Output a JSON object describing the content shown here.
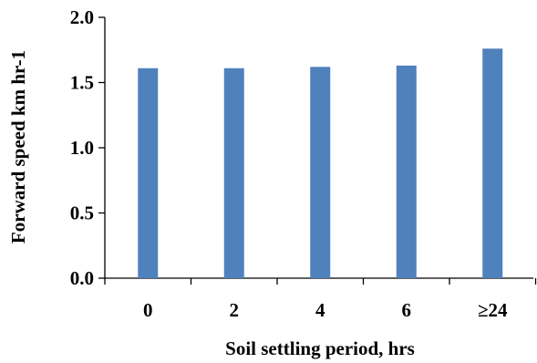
{
  "chart_data": {
    "type": "bar",
    "title": "",
    "xlabel": "Soil settling period, hrs",
    "ylabel": "Forward speed km hr-1",
    "categories": [
      "0",
      "2",
      "4",
      "6",
      "≥24"
    ],
    "values": [
      1.61,
      1.61,
      1.62,
      1.63,
      1.76
    ],
    "ylim": [
      0,
      2.0
    ],
    "yticks": [
      "0.0",
      "0.5",
      "1.0",
      "1.5",
      "2.0"
    ],
    "grid": false,
    "legend": "none",
    "colors": {
      "bar": "#4f81bd",
      "axis": "#000000"
    }
  }
}
